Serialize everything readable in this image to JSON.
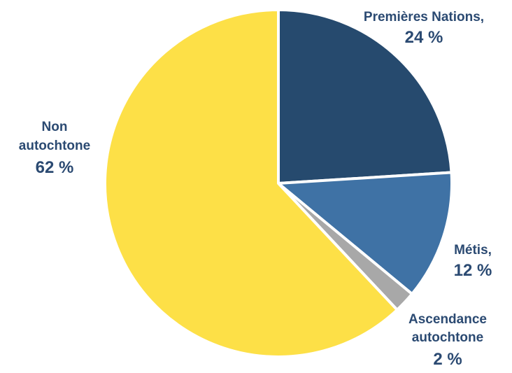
{
  "chart_data": {
    "type": "pie",
    "slices": [
      {
        "label_lines": [
          "Premières Nations,"
        ],
        "value_label": "24 %",
        "value": 24,
        "color": "#264a6e"
      },
      {
        "label_lines": [
          "Métis,"
        ],
        "value_label": "12 %",
        "value": 12,
        "color": "#3f72a5"
      },
      {
        "label_lines": [
          "Ascendance",
          "autochtone"
        ],
        "value_label": "2 %",
        "value": 2,
        "color": "#a8a8a8"
      },
      {
        "label_lines": [
          "Non",
          "autochtone"
        ],
        "value_label": "62 %",
        "value": 62,
        "color": "#fde047"
      }
    ],
    "label_color": "#2b4a72",
    "edge_color": "#ffffff"
  }
}
